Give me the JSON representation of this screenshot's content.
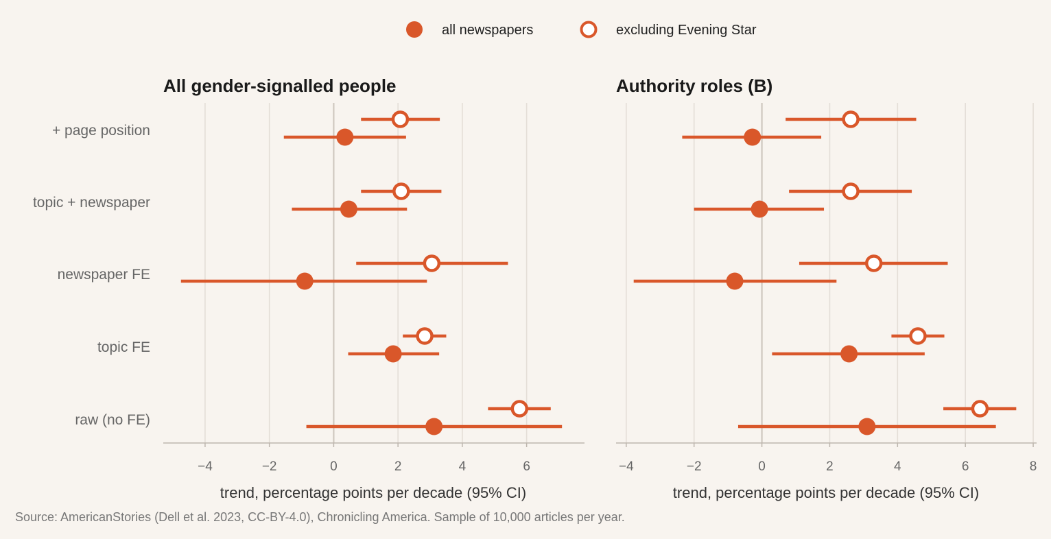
{
  "legend": {
    "all_label": "all newspapers",
    "excl_label": "excluding Evening Star"
  },
  "source": "Source: AmericanStories (Dell et al. 2023, CC-BY-4.0), Chronicling America. Sample of 10,000 articles per year.",
  "colors": {
    "series": "#d9572a",
    "background": "#f8f4ef",
    "grid": "#e4ded7",
    "zero_line": "#cfc8c0",
    "axis": "#bdb6ae"
  },
  "chart_data": [
    {
      "type": "scatter",
      "title": "All gender-signalled people",
      "xlabel": "trend, percentage points per decade (95% CI)",
      "xlim": [
        -5.3,
        7.8
      ],
      "xticks": [
        -4,
        -2,
        0,
        2,
        4,
        6
      ],
      "xtick_labels": [
        "−4",
        "−2",
        "0",
        "2",
        "4",
        "6"
      ],
      "grid": true,
      "categories": [
        "+ page position",
        "topic + newspaper",
        "newspaper FE",
        "topic FE",
        "raw (no FE)"
      ],
      "series": [
        {
          "name": "all newspapers",
          "marker": "filled",
          "points": [
            {
              "value": 0.35,
              "lo": -1.55,
              "hi": 2.25
            },
            {
              "value": 0.47,
              "lo": -1.3,
              "hi": 2.28
            },
            {
              "value": -0.9,
              "lo": -4.75,
              "hi": 2.9
            },
            {
              "value": 1.85,
              "lo": 0.45,
              "hi": 3.28
            },
            {
              "value": 3.12,
              "lo": -0.85,
              "hi": 7.1
            }
          ]
        },
        {
          "name": "excluding Evening Star",
          "marker": "hollow",
          "points": [
            {
              "value": 2.07,
              "lo": 0.85,
              "hi": 3.3
            },
            {
              "value": 2.1,
              "lo": 0.85,
              "hi": 3.35
            },
            {
              "value": 3.05,
              "lo": 0.7,
              "hi": 5.42
            },
            {
              "value": 2.83,
              "lo": 2.15,
              "hi": 3.5
            },
            {
              "value": 5.78,
              "lo": 4.8,
              "hi": 6.75
            }
          ]
        }
      ]
    },
    {
      "type": "scatter",
      "title": "Authority roles (B)",
      "xlabel": "trend, percentage points per decade (95% CI)",
      "xlim": [
        -4.3,
        8.1
      ],
      "xticks": [
        -4,
        -2,
        0,
        2,
        4,
        6,
        8
      ],
      "xtick_labels": [
        "−4",
        "−2",
        "0",
        "2",
        "4",
        "6",
        "8"
      ],
      "grid": true,
      "categories": [
        "+ page position",
        "topic + newspaper",
        "newspaper FE",
        "topic FE",
        "raw (no FE)"
      ],
      "series": [
        {
          "name": "all newspapers",
          "marker": "filled",
          "points": [
            {
              "value": -0.28,
              "lo": -2.35,
              "hi": 1.75
            },
            {
              "value": -0.07,
              "lo": -2.0,
              "hi": 1.83
            },
            {
              "value": -0.8,
              "lo": -3.78,
              "hi": 2.2
            },
            {
              "value": 2.57,
              "lo": 0.3,
              "hi": 4.8
            },
            {
              "value": 3.1,
              "lo": -0.7,
              "hi": 6.9
            }
          ]
        },
        {
          "name": "excluding Evening Star",
          "marker": "hollow",
          "points": [
            {
              "value": 2.62,
              "lo": 0.7,
              "hi": 4.55
            },
            {
              "value": 2.62,
              "lo": 0.8,
              "hi": 4.42
            },
            {
              "value": 3.3,
              "lo": 1.1,
              "hi": 5.48
            },
            {
              "value": 4.6,
              "lo": 3.82,
              "hi": 5.38
            },
            {
              "value": 6.43,
              "lo": 5.35,
              "hi": 7.5
            }
          ]
        }
      ]
    }
  ]
}
